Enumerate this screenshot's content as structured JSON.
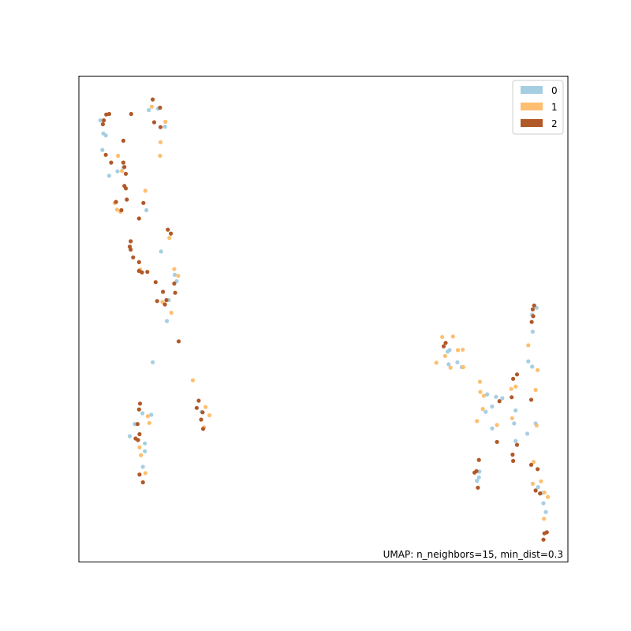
{
  "chart_data": {
    "type": "scatter",
    "title": "",
    "xlabel": "",
    "ylabel": "",
    "xlim": [
      0,
      100
    ],
    "ylim": [
      0,
      100
    ],
    "grid": false,
    "ticks": false,
    "legend_placement": "top-right",
    "annotation": "UMAP: n_neighbors=15, min_dist=0.3",
    "series": [
      {
        "name": "0",
        "color": "#a6cee3",
        "points": [
          [
            4.4,
            90.9
          ],
          [
            5.0,
            88.2
          ],
          [
            5.5,
            87.8
          ],
          [
            4.8,
            84.8
          ],
          [
            6.2,
            79.5
          ],
          [
            7.9,
            80.4
          ],
          [
            9.1,
            81.2
          ],
          [
            14.3,
            93.0
          ],
          [
            16.2,
            93.3
          ],
          [
            17.6,
            89.6
          ],
          [
            13.8,
            72.4
          ],
          [
            16.8,
            63.9
          ],
          [
            19.6,
            59.1
          ],
          [
            20.0,
            57.8
          ],
          [
            18.4,
            53.9
          ],
          [
            18.0,
            49.6
          ],
          [
            15.1,
            41.1
          ],
          [
            13.0,
            30.6
          ],
          [
            11.4,
            28.4
          ],
          [
            10.4,
            25.9
          ],
          [
            14.8,
            30.3
          ],
          [
            13.5,
            24.4
          ],
          [
            13.5,
            22.8
          ],
          [
            13.1,
            19.6
          ],
          [
            25.1,
            30.9
          ],
          [
            75.8,
            43.6
          ],
          [
            75.4,
            43.3
          ],
          [
            77.4,
            41.1
          ],
          [
            75.6,
            40.7
          ],
          [
            78.3,
            40.1
          ],
          [
            83.5,
            34.5
          ],
          [
            85.3,
            34.0
          ],
          [
            86.6,
            33.7
          ],
          [
            84.5,
            32.0
          ],
          [
            89.3,
            31.2
          ],
          [
            83.2,
            30.9
          ],
          [
            89.0,
            28.5
          ],
          [
            84.5,
            27.5
          ],
          [
            91.7,
            26.4
          ],
          [
            89.3,
            24.9
          ],
          [
            81.9,
            18.6
          ],
          [
            81.8,
            17.4
          ],
          [
            81.4,
            16.7
          ],
          [
            93.6,
            52.3
          ],
          [
            92.7,
            50.9
          ],
          [
            92.8,
            47.4
          ],
          [
            91.9,
            41.3
          ],
          [
            92.7,
            40.2
          ],
          [
            93.4,
            28.5
          ],
          [
            93.9,
            15.4
          ],
          [
            94.7,
            14.2
          ],
          [
            95.0,
            12.1
          ],
          [
            95.5,
            10.3
          ]
        ]
      },
      {
        "name": "1",
        "color": "#fdbf6f",
        "points": [
          [
            14.9,
            93.7
          ],
          [
            17.7,
            90.6
          ],
          [
            16.7,
            86.4
          ],
          [
            16.6,
            83.6
          ],
          [
            8.0,
            83.6
          ],
          [
            8.8,
            80.5
          ],
          [
            7.3,
            73.9
          ],
          [
            7.8,
            72.5
          ],
          [
            8.5,
            72.1
          ],
          [
            13.6,
            76.4
          ],
          [
            18.5,
            66.7
          ],
          [
            19.5,
            60.3
          ],
          [
            20.3,
            58.9
          ],
          [
            12.5,
            60.2
          ],
          [
            17.1,
            53.5
          ],
          [
            18.9,
            51.3
          ],
          [
            23.3,
            37.4
          ],
          [
            25.9,
            31.9
          ],
          [
            26.7,
            30.2
          ],
          [
            25.6,
            27.7
          ],
          [
            14.1,
            30.0
          ],
          [
            14.4,
            28.6
          ],
          [
            12.4,
            23.6
          ],
          [
            12.7,
            22.0
          ],
          [
            13.6,
            18.3
          ],
          [
            74.3,
            46.3
          ],
          [
            76.5,
            46.4
          ],
          [
            77.5,
            43.6
          ],
          [
            78.5,
            43.7
          ],
          [
            74.9,
            42.4
          ],
          [
            73.1,
            41.0
          ],
          [
            76.0,
            40.0
          ],
          [
            78.6,
            40.1
          ],
          [
            82.0,
            37.1
          ],
          [
            82.1,
            35.0
          ],
          [
            82.8,
            34.2
          ],
          [
            82.6,
            31.5
          ],
          [
            81.4,
            29.0
          ],
          [
            85.5,
            28.2
          ],
          [
            89.3,
            36.1
          ],
          [
            88.4,
            35.6
          ],
          [
            88.6,
            29.6
          ],
          [
            91.9,
            44.6
          ],
          [
            93.8,
            39.5
          ],
          [
            93.4,
            35.4
          ],
          [
            93.6,
            28.1
          ],
          [
            93.0,
            20.6
          ],
          [
            92.8,
            16.1
          ],
          [
            94.5,
            16.6
          ],
          [
            95.2,
            14.3
          ],
          [
            95.9,
            13.4
          ],
          [
            95.1,
            8.9
          ]
        ]
      },
      {
        "name": "2",
        "color": "#b15928",
        "points": [
          [
            15.1,
            95.2
          ],
          [
            16.6,
            93.5
          ],
          [
            4.9,
            90.1
          ],
          [
            5.1,
            90.9
          ],
          [
            5.6,
            92.1
          ],
          [
            6.2,
            92.2
          ],
          [
            10.7,
            92.2
          ],
          [
            15.4,
            90.5
          ],
          [
            16.7,
            89.5
          ],
          [
            9.1,
            86.7
          ],
          [
            5.5,
            83.8
          ],
          [
            6.6,
            82.2
          ],
          [
            9.1,
            82.2
          ],
          [
            9.3,
            81.3
          ],
          [
            9.6,
            79.9
          ],
          [
            9.3,
            77.4
          ],
          [
            9.6,
            76.9
          ],
          [
            7.6,
            74.1
          ],
          [
            9.8,
            74.6
          ],
          [
            13.2,
            73.9
          ],
          [
            8.7,
            72.4
          ],
          [
            12.3,
            70.7
          ],
          [
            18.2,
            68.4
          ],
          [
            18.8,
            67.6
          ],
          [
            10.6,
            66.0
          ],
          [
            10.4,
            64.9
          ],
          [
            10.6,
            64.3
          ],
          [
            11.1,
            62.7
          ],
          [
            12.3,
            61.7
          ],
          [
            12.3,
            59.9
          ],
          [
            12.9,
            59.6
          ],
          [
            14.0,
            59.7
          ],
          [
            15.7,
            57.6
          ],
          [
            17.2,
            55.6
          ],
          [
            19.5,
            57.3
          ],
          [
            19.7,
            55.4
          ],
          [
            16.0,
            53.7
          ],
          [
            17.9,
            53.9
          ],
          [
            17.6,
            53.0
          ],
          [
            20.4,
            45.4
          ],
          [
            12.5,
            32.6
          ],
          [
            12.3,
            31.4
          ],
          [
            24.5,
            33.2
          ],
          [
            24.1,
            31.7
          ],
          [
            25.3,
            30.8
          ],
          [
            25.0,
            29.3
          ],
          [
            25.4,
            27.4
          ],
          [
            12.0,
            28.4
          ],
          [
            12.4,
            26.3
          ],
          [
            12.1,
            25.1
          ],
          [
            11.6,
            25.4
          ],
          [
            12.4,
            18.0
          ],
          [
            13.1,
            16.4
          ],
          [
            81.8,
            21.0
          ],
          [
            81.3,
            18.7
          ],
          [
            80.9,
            18.4
          ],
          [
            81.6,
            15.3
          ],
          [
            75.0,
            45.1
          ],
          [
            74.6,
            44.4
          ],
          [
            86.0,
            33.1
          ],
          [
            88.5,
            33.9
          ],
          [
            88.8,
            37.7
          ],
          [
            89.6,
            38.6
          ],
          [
            85.5,
            24.7
          ],
          [
            89.6,
            24.1
          ],
          [
            88.7,
            22.1
          ],
          [
            88.8,
            20.8
          ],
          [
            92.8,
            52.0
          ],
          [
            93.1,
            52.8
          ],
          [
            92.6,
            49.4
          ],
          [
            92.9,
            50.6
          ],
          [
            92.5,
            33.4
          ],
          [
            92.5,
            20.0
          ],
          [
            93.8,
            19.1
          ],
          [
            93.4,
            14.7
          ],
          [
            94.3,
            14.1
          ],
          [
            95.7,
            6.1
          ],
          [
            95.2,
            5.9
          ],
          [
            95.0,
            4.6
          ]
        ]
      }
    ]
  }
}
